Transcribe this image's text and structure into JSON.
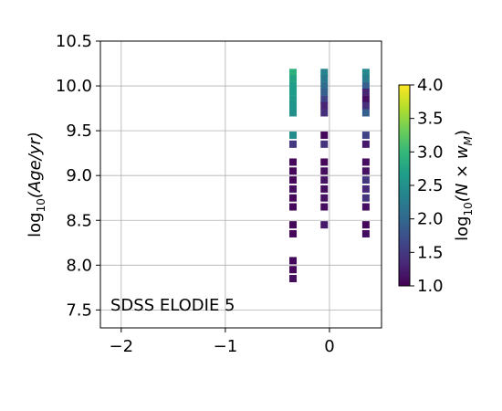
{
  "chart_data": {
    "type": "heatmap",
    "title": "",
    "annotation": "SDSS ELODIE 5",
    "xlabel": "",
    "ylabel": {
      "prefix": "log",
      "sub": "10",
      "body": "(Age/yr)"
    },
    "xlim": [
      -2.2,
      0.5
    ],
    "ylim": [
      7.3,
      10.5
    ],
    "xticks": [
      {
        "value": -2,
        "label": "−2"
      },
      {
        "value": -1,
        "label": "−1"
      },
      {
        "value": 0,
        "label": "0"
      }
    ],
    "yticks": [
      {
        "value": 7.5,
        "label": "7.5"
      },
      {
        "value": 8.0,
        "label": "8.0"
      },
      {
        "value": 8.5,
        "label": "8.5"
      },
      {
        "value": 9.0,
        "label": "9.0"
      },
      {
        "value": 9.5,
        "label": "9.5"
      },
      {
        "value": 10.0,
        "label": "10.0"
      },
      {
        "value": 10.5,
        "label": "10.5"
      }
    ],
    "grid": true,
    "colormap": "viridis",
    "colorbar": {
      "label": {
        "prefix": "log",
        "sub": "10",
        "body": "(N × w",
        "subM": "M",
        "end": ")"
      },
      "range": [
        1.0,
        4.0
      ],
      "ticks": [
        "1.0",
        "1.5",
        "2.0",
        "2.5",
        "3.0",
        "3.5",
        "4.0"
      ]
    },
    "columns": [
      {
        "x": -0.35,
        "points": [
          {
            "y": 10.15,
            "c": 2.9
          },
          {
            "y": 10.08,
            "c": 2.75
          },
          {
            "y": 10.0,
            "c": 2.65
          },
          {
            "y": 9.93,
            "c": 2.65
          },
          {
            "y": 9.85,
            "c": 2.6
          },
          {
            "y": 9.78,
            "c": 2.55
          },
          {
            "y": 9.7,
            "c": 2.5
          },
          {
            "y": 9.45,
            "c": 2.45
          },
          {
            "y": 9.35,
            "c": 1.5
          },
          {
            "y": 9.15,
            "c": 1.05
          },
          {
            "y": 9.05,
            "c": 1.05
          },
          {
            "y": 8.95,
            "c": 1.05
          },
          {
            "y": 8.85,
            "c": 1.1
          },
          {
            "y": 8.75,
            "c": 1.05
          },
          {
            "y": 8.65,
            "c": 1.05
          },
          {
            "y": 8.45,
            "c": 1.05
          },
          {
            "y": 8.35,
            "c": 1.05
          },
          {
            "y": 8.05,
            "c": 1.05
          },
          {
            "y": 7.95,
            "c": 1.05
          },
          {
            "y": 7.85,
            "c": 1.1
          }
        ]
      },
      {
        "x": -0.05,
        "points": [
          {
            "y": 10.15,
            "c": 2.35
          },
          {
            "y": 10.08,
            "c": 2.2
          },
          {
            "y": 10.0,
            "c": 2.05
          },
          {
            "y": 9.93,
            "c": 1.9
          },
          {
            "y": 9.85,
            "c": 1.6
          },
          {
            "y": 9.78,
            "c": 1.3
          },
          {
            "y": 9.7,
            "c": 1.4
          },
          {
            "y": 9.45,
            "c": 1.05
          },
          {
            "y": 9.35,
            "c": 1.45
          },
          {
            "y": 9.15,
            "c": 1.05
          },
          {
            "y": 9.05,
            "c": 1.1
          },
          {
            "y": 8.95,
            "c": 1.15
          },
          {
            "y": 8.85,
            "c": 1.1
          },
          {
            "y": 8.75,
            "c": 1.15
          },
          {
            "y": 8.65,
            "c": 1.1
          },
          {
            "y": 8.45,
            "c": 1.2
          }
        ]
      },
      {
        "x": 0.35,
        "points": [
          {
            "y": 10.15,
            "c": 2.4
          },
          {
            "y": 10.08,
            "c": 2.25
          },
          {
            "y": 10.0,
            "c": 1.9
          },
          {
            "y": 9.93,
            "c": 1.3
          },
          {
            "y": 9.85,
            "c": 1.1
          },
          {
            "y": 9.78,
            "c": 1.4
          },
          {
            "y": 9.7,
            "c": 1.9
          },
          {
            "y": 9.45,
            "c": 1.6
          },
          {
            "y": 9.35,
            "c": 1.2
          },
          {
            "y": 9.15,
            "c": 1.1
          },
          {
            "y": 9.05,
            "c": 1.15
          },
          {
            "y": 8.95,
            "c": 1.5
          },
          {
            "y": 8.85,
            "c": 1.35
          },
          {
            "y": 8.75,
            "c": 1.45
          },
          {
            "y": 8.65,
            "c": 1.1
          },
          {
            "y": 8.45,
            "c": 1.05
          },
          {
            "y": 8.35,
            "c": 1.1
          }
        ]
      }
    ]
  }
}
